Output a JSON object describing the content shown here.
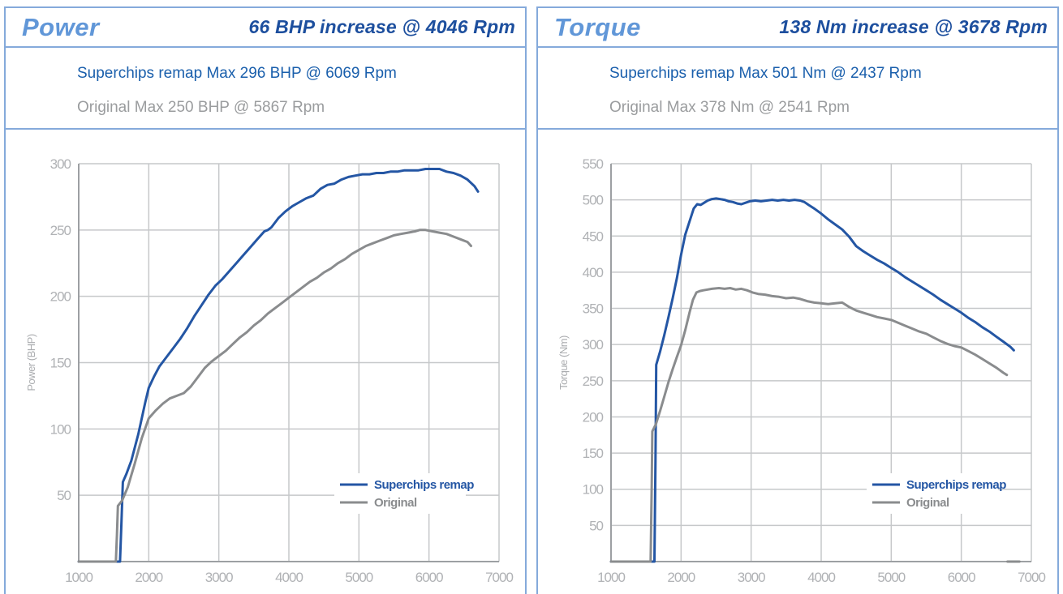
{
  "colors": {
    "panel_border": "#85aadb",
    "title_blue": "#6197d8",
    "increase_blue": "#1d4f9e",
    "remap_blue": "#1a5fac",
    "original_gray": "#9a9c9e",
    "curve_blue": "#2456a4",
    "curve_gray": "#8a8c8e",
    "grid": "#c6c8ca",
    "axis": "#9da0a3",
    "tick_label": "#b0b2b5",
    "axis_title": "#aaacaf"
  },
  "panels": [
    {
      "title": "Power",
      "increase": "66 BHP increase @ 4046 Rpm",
      "remap_max": "Superchips remap Max 296 BHP @ 6069 Rpm",
      "original_max": "Original Max 250 BHP @ 5867 Rpm"
    },
    {
      "title": "Torque",
      "increase": "138 Nm increase @ 3678 Rpm",
      "remap_max": "Superchips remap Max 501 Nm @ 2437 Rpm",
      "original_max": "Original Max 378 Nm @ 2541 Rpm"
    }
  ],
  "chart_data": [
    {
      "type": "line",
      "title": "Power",
      "xlabel": "",
      "ylabel": "Power (BHP)",
      "x_range": [
        1000,
        7000
      ],
      "y_range": [
        0,
        300
      ],
      "x_ticks": [
        1000,
        2000,
        3000,
        4000,
        5000,
        6000,
        7000
      ],
      "y_ticks": [
        50,
        100,
        150,
        200,
        250,
        300
      ],
      "grid": true,
      "legend_position": "lower-right",
      "series": [
        {
          "name": "Superchips remap",
          "color": "#2456a4",
          "points": [
            [
              1000,
              0
            ],
            [
              1590,
              0
            ],
            [
              1610,
              30
            ],
            [
              1630,
              60
            ],
            [
              1680,
              66
            ],
            [
              1750,
              76
            ],
            [
              1850,
              96
            ],
            [
              1950,
              120
            ],
            [
              2000,
              131
            ],
            [
              2080,
              140
            ],
            [
              2150,
              147
            ],
            [
              2250,
              154
            ],
            [
              2350,
              161
            ],
            [
              2450,
              168
            ],
            [
              2550,
              176
            ],
            [
              2650,
              185
            ],
            [
              2750,
              193
            ],
            [
              2850,
              201
            ],
            [
              2950,
              208
            ],
            [
              3050,
              213
            ],
            [
              3150,
              219
            ],
            [
              3250,
              225
            ],
            [
              3350,
              231
            ],
            [
              3450,
              237
            ],
            [
              3550,
              243
            ],
            [
              3650,
              249
            ],
            [
              3700,
              250
            ],
            [
              3750,
              252
            ],
            [
              3850,
              259
            ],
            [
              3950,
              264
            ],
            [
              4050,
              268
            ],
            [
              4150,
              271
            ],
            [
              4250,
              274
            ],
            [
              4350,
              276
            ],
            [
              4450,
              281
            ],
            [
              4550,
              284
            ],
            [
              4650,
              285
            ],
            [
              4750,
              288
            ],
            [
              4850,
              290
            ],
            [
              4950,
              291
            ],
            [
              5050,
              292
            ],
            [
              5150,
              292
            ],
            [
              5250,
              293
            ],
            [
              5350,
              293
            ],
            [
              5450,
              294
            ],
            [
              5550,
              294
            ],
            [
              5650,
              295
            ],
            [
              5750,
              295
            ],
            [
              5850,
              295
            ],
            [
              5950,
              296
            ],
            [
              6069,
              296
            ],
            [
              6150,
              296
            ],
            [
              6250,
              294
            ],
            [
              6350,
              293
            ],
            [
              6450,
              291
            ],
            [
              6550,
              288
            ],
            [
              6650,
              283
            ],
            [
              6700,
              279
            ]
          ]
        },
        {
          "name": "Original",
          "color": "#8a8c8e",
          "points": [
            [
              1000,
              0
            ],
            [
              1530,
              0
            ],
            [
              1545,
              20
            ],
            [
              1560,
              42
            ],
            [
              1620,
              46
            ],
            [
              1700,
              56
            ],
            [
              1800,
              74
            ],
            [
              1900,
              93
            ],
            [
              2000,
              108
            ],
            [
              2100,
              114
            ],
            [
              2200,
              119
            ],
            [
              2300,
              123
            ],
            [
              2400,
              125
            ],
            [
              2500,
              127
            ],
            [
              2600,
              132
            ],
            [
              2700,
              139
            ],
            [
              2800,
              146
            ],
            [
              2900,
              151
            ],
            [
              3000,
              155
            ],
            [
              3100,
              159
            ],
            [
              3200,
              164
            ],
            [
              3300,
              169
            ],
            [
              3400,
              173
            ],
            [
              3500,
              178
            ],
            [
              3600,
              182
            ],
            [
              3700,
              187
            ],
            [
              3800,
              191
            ],
            [
              3900,
              195
            ],
            [
              4000,
              199
            ],
            [
              4100,
              203
            ],
            [
              4200,
              207
            ],
            [
              4300,
              211
            ],
            [
              4400,
              214
            ],
            [
              4500,
              218
            ],
            [
              4600,
              221
            ],
            [
              4700,
              225
            ],
            [
              4800,
              228
            ],
            [
              4900,
              232
            ],
            [
              5000,
              235
            ],
            [
              5100,
              238
            ],
            [
              5200,
              240
            ],
            [
              5300,
              242
            ],
            [
              5400,
              244
            ],
            [
              5500,
              246
            ],
            [
              5600,
              247
            ],
            [
              5700,
              248
            ],
            [
              5800,
              249
            ],
            [
              5867,
              250
            ],
            [
              5950,
              250
            ],
            [
              6050,
              249
            ],
            [
              6150,
              248
            ],
            [
              6250,
              247
            ],
            [
              6350,
              245
            ],
            [
              6450,
              243
            ],
            [
              6550,
              241
            ],
            [
              6600,
              238
            ]
          ]
        }
      ]
    },
    {
      "type": "line",
      "title": "Torque",
      "xlabel": "",
      "ylabel": "Torque (Nm)",
      "x_range": [
        1000,
        7000
      ],
      "y_range": [
        0,
        550
      ],
      "x_ticks": [
        1000,
        2000,
        3000,
        4000,
        5000,
        6000,
        7000
      ],
      "y_ticks": [
        50,
        100,
        150,
        200,
        250,
        300,
        350,
        400,
        450,
        500,
        550
      ],
      "grid": true,
      "legend_position": "lower-right",
      "series": [
        {
          "name": "Superchips remap",
          "color": "#2456a4",
          "points": [
            [
              1000,
              0
            ],
            [
              1620,
              0
            ],
            [
              1635,
              140
            ],
            [
              1645,
              272
            ],
            [
              1700,
              290
            ],
            [
              1760,
              313
            ],
            [
              1820,
              338
            ],
            [
              1880,
              364
            ],
            [
              1940,
              392
            ],
            [
              2000,
              424
            ],
            [
              2060,
              452
            ],
            [
              2120,
              470
            ],
            [
              2180,
              488
            ],
            [
              2230,
              494
            ],
            [
              2280,
              493
            ],
            [
              2330,
              496
            ],
            [
              2380,
              499
            ],
            [
              2437,
              501
            ],
            [
              2500,
              502
            ],
            [
              2560,
              501
            ],
            [
              2620,
              500
            ],
            [
              2680,
              498
            ],
            [
              2740,
              497
            ],
            [
              2800,
              495
            ],
            [
              2860,
              494
            ],
            [
              2920,
              496
            ],
            [
              2980,
              498
            ],
            [
              3060,
              499
            ],
            [
              3140,
              498
            ],
            [
              3220,
              499
            ],
            [
              3300,
              500
            ],
            [
              3380,
              499
            ],
            [
              3460,
              500
            ],
            [
              3540,
              499
            ],
            [
              3620,
              500
            ],
            [
              3700,
              499
            ],
            [
              3760,
              497
            ],
            [
              3820,
              493
            ],
            [
              3900,
              488
            ],
            [
              4000,
              481
            ],
            [
              4100,
              473
            ],
            [
              4200,
              466
            ],
            [
              4300,
              459
            ],
            [
              4400,
              449
            ],
            [
              4500,
              436
            ],
            [
              4600,
              429
            ],
            [
              4700,
              423
            ],
            [
              4800,
              417
            ],
            [
              4900,
              412
            ],
            [
              5000,
              406
            ],
            [
              5100,
              400
            ],
            [
              5200,
              393
            ],
            [
              5300,
              387
            ],
            [
              5400,
              381
            ],
            [
              5500,
              375
            ],
            [
              5600,
              369
            ],
            [
              5700,
              362
            ],
            [
              5800,
              356
            ],
            [
              5900,
              350
            ],
            [
              6000,
              344
            ],
            [
              6100,
              337
            ],
            [
              6200,
              331
            ],
            [
              6300,
              324
            ],
            [
              6400,
              318
            ],
            [
              6500,
              311
            ],
            [
              6600,
              304
            ],
            [
              6700,
              297
            ],
            [
              6750,
              292
            ]
          ]
        },
        {
          "name": "Original",
          "color": "#8a8c8e",
          "points": [
            [
              1000,
              0
            ],
            [
              1565,
              0
            ],
            [
              1580,
              100
            ],
            [
              1590,
              180
            ],
            [
              1640,
              190
            ],
            [
              1700,
              208
            ],
            [
              1760,
              228
            ],
            [
              1820,
              248
            ],
            [
              1880,
              266
            ],
            [
              1940,
              283
            ],
            [
              2000,
              299
            ],
            [
              2060,
              320
            ],
            [
              2120,
              344
            ],
            [
              2170,
              362
            ],
            [
              2220,
              372
            ],
            [
              2270,
              374
            ],
            [
              2320,
              375
            ],
            [
              2380,
              376
            ],
            [
              2440,
              377
            ],
            [
              2541,
              378
            ],
            [
              2620,
              377
            ],
            [
              2700,
              378
            ],
            [
              2780,
              376
            ],
            [
              2860,
              377
            ],
            [
              2940,
              375
            ],
            [
              3020,
              372
            ],
            [
              3100,
              370
            ],
            [
              3200,
              369
            ],
            [
              3300,
              367
            ],
            [
              3400,
              366
            ],
            [
              3500,
              364
            ],
            [
              3600,
              365
            ],
            [
              3700,
              363
            ],
            [
              3800,
              360
            ],
            [
              3900,
              358
            ],
            [
              4000,
              357
            ],
            [
              4100,
              356
            ],
            [
              4200,
              357
            ],
            [
              4300,
              358
            ],
            [
              4400,
              352
            ],
            [
              4500,
              347
            ],
            [
              4600,
              344
            ],
            [
              4700,
              341
            ],
            [
              4800,
              338
            ],
            [
              4900,
              336
            ],
            [
              5000,
              334
            ],
            [
              5100,
              330
            ],
            [
              5200,
              326
            ],
            [
              5300,
              322
            ],
            [
              5400,
              318
            ],
            [
              5500,
              315
            ],
            [
              5600,
              310
            ],
            [
              5700,
              305
            ],
            [
              5800,
              301
            ],
            [
              5900,
              298
            ],
            [
              6000,
              296
            ],
            [
              6100,
              291
            ],
            [
              6200,
              286
            ],
            [
              6300,
              280
            ],
            [
              6400,
              274
            ],
            [
              6500,
              268
            ],
            [
              6600,
              261
            ],
            [
              6650,
              258
            ]
          ]
        },
        {
          "name": "",
          "color": "#8a8c8e",
          "points": [
            [
              6660,
              0
            ],
            [
              6830,
              0
            ]
          ]
        }
      ]
    }
  ]
}
